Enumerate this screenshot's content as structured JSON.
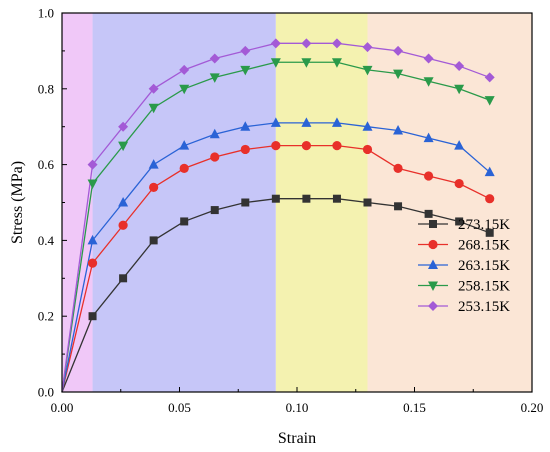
{
  "chart_data": {
    "type": "line",
    "xlabel": "Strain",
    "ylabel": "Stress (MPa)",
    "xlim": [
      0.0,
      0.2
    ],
    "ylim": [
      0.0,
      1.0
    ],
    "xticks": [
      "0.00",
      "0.05",
      "0.10",
      "0.15",
      "0.20"
    ],
    "yticks": [
      "0.0",
      "0.2",
      "0.4",
      "0.6",
      "0.8",
      "1.0"
    ],
    "legend_position": "lower-right",
    "regions": [
      {
        "from": 0.0,
        "to": 0.013,
        "color": "#f0c8f8"
      },
      {
        "from": 0.013,
        "to": 0.091,
        "color": "#c6c6f8"
      },
      {
        "from": 0.091,
        "to": 0.13,
        "color": "#f4f2b0"
      },
      {
        "from": 0.13,
        "to": 0.2,
        "color": "#fbe6d6"
      }
    ],
    "x": [
      0,
      0.013,
      0.026,
      0.039,
      0.052,
      0.065,
      0.078,
      0.091,
      0.104,
      0.117,
      0.13,
      0.143,
      0.156,
      0.169,
      0.182
    ],
    "series": [
      {
        "name": "273.15K",
        "color": "#333333",
        "marker": "square",
        "values": [
          0,
          0.2,
          0.3,
          0.4,
          0.45,
          0.48,
          0.5,
          0.51,
          0.51,
          0.51,
          0.5,
          0.49,
          0.47,
          0.45,
          0.42
        ]
      },
      {
        "name": "268.15K",
        "color": "#e8302a",
        "marker": "circle",
        "values": [
          0,
          0.34,
          0.44,
          0.54,
          0.59,
          0.62,
          0.64,
          0.65,
          0.65,
          0.65,
          0.64,
          0.59,
          0.57,
          0.55,
          0.51
        ]
      },
      {
        "name": "263.15K",
        "color": "#2a63d6",
        "marker": "triangle-up",
        "values": [
          0,
          0.4,
          0.5,
          0.6,
          0.65,
          0.68,
          0.7,
          0.71,
          0.71,
          0.71,
          0.7,
          0.69,
          0.67,
          0.65,
          0.58
        ]
      },
      {
        "name": "258.15K",
        "color": "#2a9a4a",
        "marker": "triangle-down",
        "values": [
          0,
          0.55,
          0.65,
          0.75,
          0.8,
          0.83,
          0.85,
          0.87,
          0.87,
          0.87,
          0.85,
          0.84,
          0.82,
          0.8,
          0.77
        ]
      },
      {
        "name": "253.15K",
        "color": "#a35ad6",
        "marker": "diamond",
        "values": [
          0,
          0.6,
          0.7,
          0.8,
          0.85,
          0.88,
          0.9,
          0.92,
          0.92,
          0.92,
          0.91,
          0.9,
          0.88,
          0.86,
          0.83
        ]
      }
    ]
  }
}
